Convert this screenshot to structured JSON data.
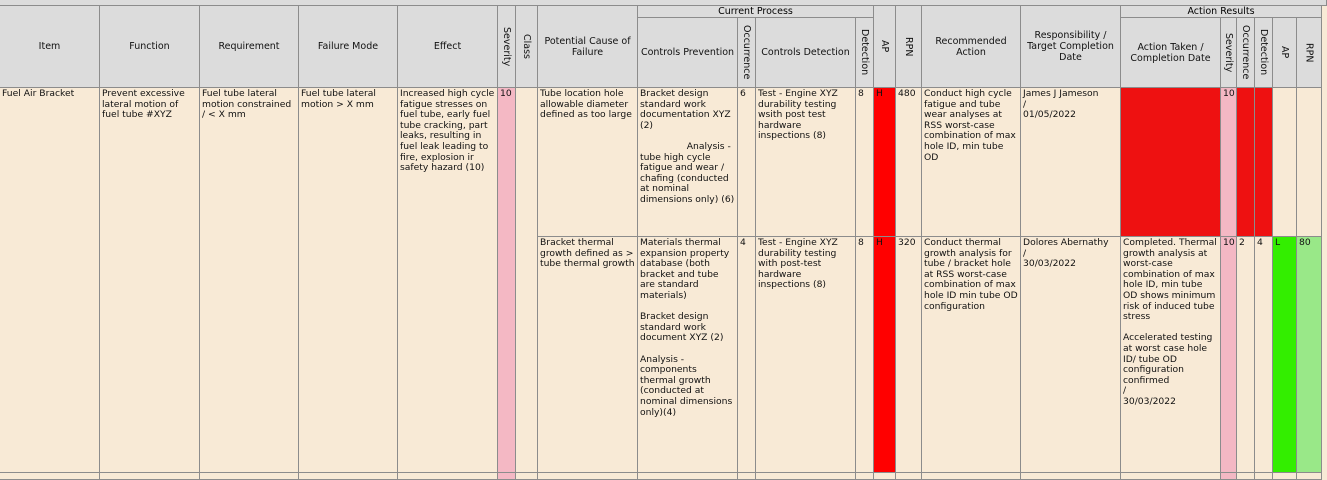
{
  "group_headers": [
    "Current Process",
    "Action Results"
  ],
  "headers": [
    "Item",
    "Function",
    "Requirement",
    "Failure Mode",
    "Effect",
    "Severity",
    "Class",
    "Potential Cause of Failure",
    "Controls Prevention",
    "Occurrence",
    "Controls Detection",
    "Detection",
    "AP",
    "RPN",
    "Recommended Action",
    "Responsibility / Target Completion Date",
    "Action Taken / Completion Date",
    "Severity",
    "Occurrence",
    "Detection",
    "AP",
    "RPN"
  ],
  "shared": {
    "item": "Fuel Air Bracket",
    "function": "Prevent excessive lateral motion of fuel tube #XYZ",
    "requirement": "Fuel tube lateral motion constrained  / < X mm",
    "failure_mode": "Fuel tube lateral motion > X mm",
    "effect": "Increased high cycle fatigue stresses on fuel tube, early fuel tube cracking, part leaks, resulting in fuel leak leading to fire, explosion ir safety hazard (10)",
    "severity": 10
  },
  "rows": [
    {
      "cause": "Tube location hole allowable diameter defined as too large",
      "prevention": "Bracket design standard work documentation XYZ (2)\n\n                Analysis -\ntube high cycle fatigue and wear / chafing (conducted at nominal dimensions only) (6)",
      "occurrence": 6,
      "detection_controls": "Test - Engine XYZ durability testing wsith post test hardware inspections (8)",
      "detection": 8,
      "ap": "H",
      "rpn": 480,
      "recommended_action": "Conduct high cycle fatigue and tube wear analyses at RSS worst-case combination of max hole ID, min tube OD",
      "responsibility": "James J Jameson\n/\n01/05/2022",
      "result_severity": 10
    },
    {
      "cause": "Bracket thermal growth defined as > tube thermal growth",
      "prevention": "Materials thermal expansion property database (both bracket and tube are standard materials)\n\nBracket design standard work document XYZ (2)\n\nAnalysis -  components thermal growth (conducted at nominal dimensions only)(4)",
      "occurrence": 4,
      "detection_controls": "Test - Engine XYZ durability testing with post-test hardware inspections (8)",
      "detection": 8,
      "ap": "H",
      "rpn": 320,
      "recommended_action": "Conduct thermal growth analysis for tube / bracket hole at RSS worst-case combination of max hole ID min tube OD configuration",
      "responsibility": "Dolores Abernathy\n/\n30/03/2022",
      "action_taken": "Completed. Thermal growth analysis at worst-case combination of max hole ID, min tube OD shows minimum risk of induced tube stress\n\nAccelerated testing at worst case hole ID/ tube OD configuration confirmed\n/\n30/03/2022",
      "result_severity": 10,
      "result_occurrence": 2,
      "result_detection": 4,
      "result_ap": "L",
      "result_rpn": 80
    }
  ]
}
